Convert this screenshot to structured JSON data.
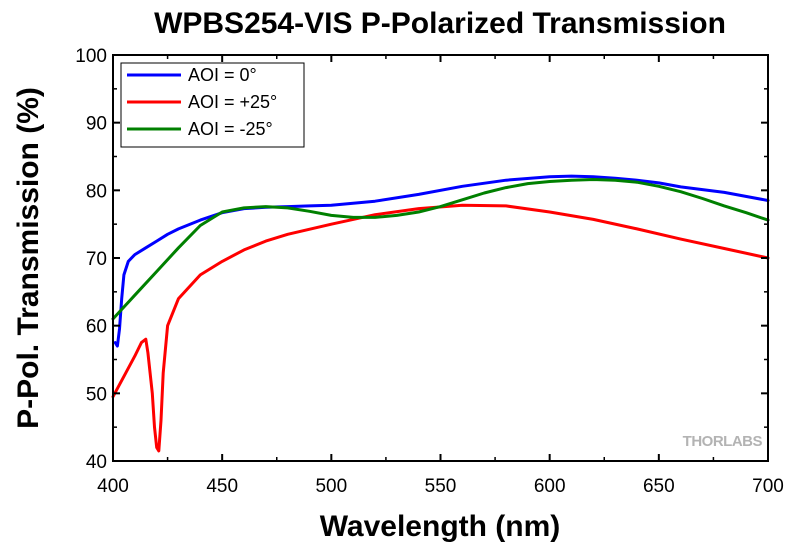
{
  "chart_data": {
    "type": "line",
    "title": "WPBS254-VIS P-Polarized Transmission",
    "xlabel": "Wavelength (nm)",
    "ylabel": "P-Pol. Transmission (%)",
    "xlim": [
      400,
      700
    ],
    "ylim": [
      40,
      100
    ],
    "xticks": [
      400,
      450,
      500,
      550,
      600,
      650,
      700
    ],
    "yticks": [
      40,
      50,
      60,
      70,
      80,
      90,
      100
    ],
    "grid": false,
    "legend_position": "top-left",
    "watermark": "THORLABS",
    "series": [
      {
        "name": "AOI = 0°",
        "color": "#0000ff",
        "x": [
          401,
          402,
          403,
          404,
          405,
          407,
          410,
          415,
          420,
          425,
          430,
          440,
          450,
          460,
          470,
          480,
          490,
          500,
          520,
          540,
          560,
          580,
          600,
          610,
          620,
          630,
          640,
          650,
          660,
          680,
          700
        ],
        "y": [
          57.5,
          57,
          59.5,
          64,
          67.5,
          69.5,
          70.5,
          71.5,
          72.5,
          73.5,
          74.3,
          75.6,
          76.7,
          77.3,
          77.5,
          77.6,
          77.7,
          77.8,
          78.4,
          79.4,
          80.6,
          81.5,
          82.0,
          82.1,
          82.0,
          81.8,
          81.5,
          81.1,
          80.5,
          79.7,
          78.5
        ]
      },
      {
        "name": "AOI = +25°",
        "color": "#ff0000",
        "x": [
          400,
          405,
          410,
          413,
          415,
          416,
          418,
          419,
          420,
          421,
          422,
          423,
          425,
          430,
          440,
          450,
          460,
          470,
          480,
          500,
          520,
          540,
          560,
          580,
          600,
          620,
          640,
          660,
          680,
          700
        ],
        "y": [
          49.5,
          52.5,
          55.5,
          57.5,
          58,
          56,
          50,
          45,
          42,
          41.5,
          46,
          53,
          60,
          64,
          67.5,
          69.5,
          71.2,
          72.5,
          73.5,
          75,
          76.4,
          77.3,
          77.8,
          77.7,
          76.8,
          75.7,
          74.3,
          72.8,
          71.4,
          70
        ]
      },
      {
        "name": "AOI = -25°",
        "color": "#008000",
        "x": [
          400,
          410,
          420,
          430,
          440,
          450,
          460,
          470,
          480,
          490,
          500,
          510,
          520,
          530,
          540,
          550,
          560,
          570,
          580,
          590,
          600,
          610,
          620,
          630,
          640,
          650,
          660,
          670,
          680,
          690,
          700
        ],
        "y": [
          61,
          64.5,
          68,
          71.5,
          74.8,
          76.8,
          77.4,
          77.6,
          77.4,
          76.9,
          76.3,
          76.0,
          76.0,
          76.3,
          76.8,
          77.6,
          78.6,
          79.6,
          80.4,
          81.0,
          81.3,
          81.5,
          81.6,
          81.5,
          81.2,
          80.6,
          79.8,
          78.8,
          77.7,
          76.7,
          75.6
        ]
      }
    ]
  }
}
